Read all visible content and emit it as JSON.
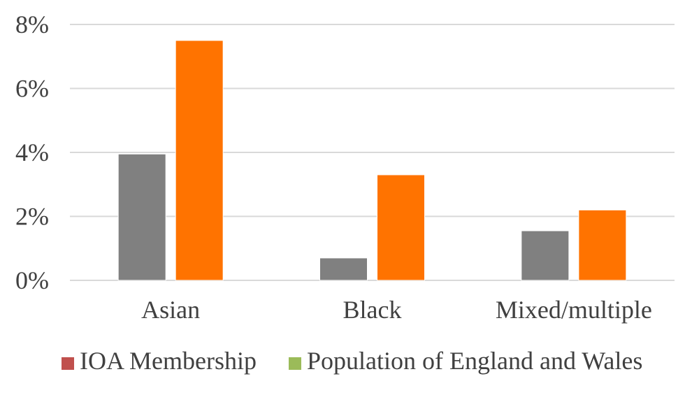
{
  "chart_data": {
    "type": "bar",
    "categories": [
      "Asian",
      "Black",
      "Mixed/multiple"
    ],
    "series": [
      {
        "name": "IOA Membership",
        "values": [
          3.95,
          0.7,
          1.55
        ],
        "bar_color": "#808080",
        "legend_color": "#c0504d"
      },
      {
        "name": "Population of England and Wales",
        "values": [
          7.5,
          3.3,
          2.2
        ],
        "bar_color": "#ff7300",
        "legend_color": "#9bbb59"
      }
    ],
    "ylim": [
      0,
      8
    ],
    "yticks": [
      0,
      2,
      4,
      6,
      8
    ],
    "ytick_labels": [
      "0%",
      "2%",
      "4%",
      "6%",
      "8%"
    ],
    "grid": true,
    "legend_position": "bottom",
    "title": "",
    "xlabel": "",
    "ylabel": ""
  }
}
